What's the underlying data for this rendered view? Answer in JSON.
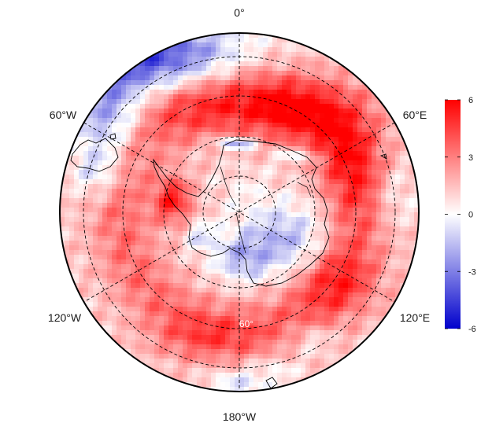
{
  "map": {
    "projection": "south-polar-stereographic",
    "longitude_labels": {
      "top": "0°",
      "upper_right": "60°E",
      "lower_right": "120°E",
      "bottom": "180°W",
      "lower_left": "120°W",
      "upper_left": "60°W"
    },
    "latitude_label": "60°",
    "colorbar": {
      "min": -6,
      "max": 6,
      "ticks": [
        "6",
        "3",
        "0",
        "-3",
        "-6"
      ],
      "colors": {
        "low": "#0000cc",
        "mid": "#ffffff",
        "high": "#ff0000"
      }
    },
    "field_summary": "anomaly field: mostly positive (red) across Southern Ocean rings; negative (blue) over South Atlantic/Weddell sector north of 50°S, parts of East Antarctica coast and Ross Sea; strong positive over Antarctic Peninsula",
    "graticule": {
      "style": "dashed",
      "meridians_every_deg": 60,
      "parallels": "dashed rings"
    }
  }
}
